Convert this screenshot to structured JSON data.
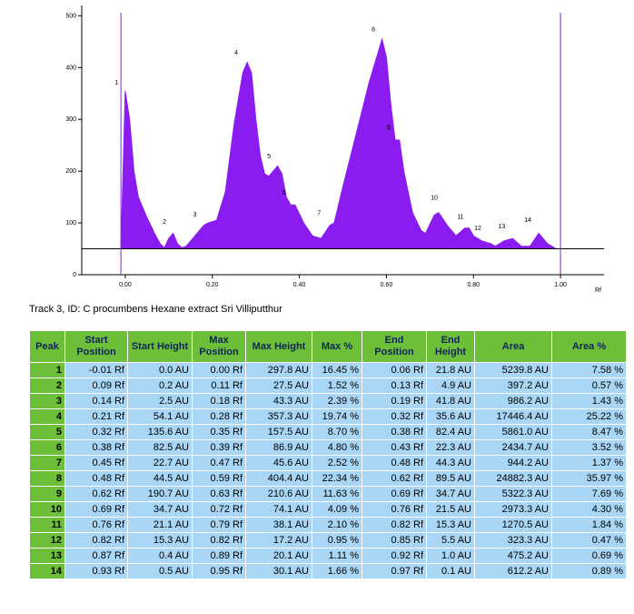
{
  "chart_data": {
    "type": "area",
    "x_label": "Rf",
    "color": "#8a1cf0",
    "baseline": 50,
    "xlim": [
      -0.1,
      1.1
    ],
    "ylim": [
      0,
      520
    ],
    "xticks": [
      {
        "value": 0,
        "label": "0.00"
      },
      {
        "value": 0.2,
        "label": "0.20"
      },
      {
        "value": 0.4,
        "label": "0.40"
      },
      {
        "value": 0.6,
        "label": "0.60"
      },
      {
        "value": 0.8,
        "label": "0.80"
      },
      {
        "value": 1,
        "label": "1.00"
      }
    ],
    "yticks": [
      0,
      100,
      200,
      300,
      400,
      500
    ],
    "vlines": [
      -0.01,
      1.0
    ],
    "x": [
      -0.01,
      0,
      0.01,
      0.02,
      0.03,
      0.05,
      0.07,
      0.08,
      0.09,
      0.1,
      0.11,
      0.12,
      0.13,
      0.14,
      0.16,
      0.18,
      0.19,
      0.21,
      0.23,
      0.25,
      0.27,
      0.28,
      0.29,
      0.3,
      0.31,
      0.32,
      0.33,
      0.35,
      0.36,
      0.37,
      0.38,
      0.39,
      0.41,
      0.43,
      0.45,
      0.47,
      0.48,
      0.5,
      0.53,
      0.56,
      0.59,
      0.6,
      0.61,
      0.62,
      0.63,
      0.64,
      0.66,
      0.68,
      0.69,
      0.71,
      0.72,
      0.74,
      0.76,
      0.78,
      0.79,
      0.8,
      0.82,
      0.84,
      0.85,
      0.87,
      0.89,
      0.91,
      0.93,
      0.95,
      0.97,
      0.99,
      1.0
    ],
    "values": [
      50,
      355,
      300,
      200,
      150,
      110,
      75,
      60,
      52,
      70,
      80,
      60,
      52,
      55,
      75,
      95,
      100,
      105,
      160,
      290,
      390,
      410,
      390,
      300,
      230,
      195,
      190,
      210,
      195,
      150,
      135,
      135,
      100,
      75,
      70,
      95,
      100,
      170,
      270,
      370,
      455,
      420,
      330,
      260,
      260,
      200,
      120,
      85,
      80,
      115,
      120,
      95,
      75,
      90,
      90,
      75,
      65,
      60,
      55,
      65,
      70,
      55,
      55,
      80,
      60,
      50,
      50
    ],
    "peaks": [
      {
        "label": "1",
        "x": -0.02,
        "y": 367
      },
      {
        "label": "2",
        "x": 0.09,
        "y": 98
      },
      {
        "label": "3",
        "x": 0.16,
        "y": 112
      },
      {
        "label": "4",
        "x": 0.255,
        "y": 425
      },
      {
        "label": "5",
        "x": 0.33,
        "y": 225
      },
      {
        "label": "6",
        "x": 0.365,
        "y": 155
      },
      {
        "label": "7",
        "x": 0.445,
        "y": 115
      },
      {
        "label": "8",
        "x": 0.57,
        "y": 470
      },
      {
        "label": "9",
        "x": 0.605,
        "y": 280
      },
      {
        "label": "10",
        "x": 0.71,
        "y": 145
      },
      {
        "label": "11",
        "x": 0.77,
        "y": 108
      },
      {
        "label": "12",
        "x": 0.81,
        "y": 86
      },
      {
        "label": "13",
        "x": 0.865,
        "y": 90
      },
      {
        "label": "14",
        "x": 0.925,
        "y": 102
      }
    ]
  },
  "caption": "Track 3, ID: C procumbens Hexane extract Sri Villiputthur",
  "table": {
    "headers": [
      "Peak",
      "Start Position",
      "Start Height",
      "Max Position",
      "Max Height",
      "Max %",
      "End Position",
      "End Height",
      "Area",
      "Area %"
    ],
    "rows": [
      [
        "1",
        "-0.01 Rf",
        "0.0 AU",
        "0.00 Rf",
        "297.8 AU",
        "16.45 %",
        "0.06 Rf",
        "21.8 AU",
        "5239.8 AU",
        "7.58 %"
      ],
      [
        "2",
        "0.09 Rf",
        "0.2 AU",
        "0.11 Rf",
        "27.5 AU",
        "1.52 %",
        "0.13 Rf",
        "4.9 AU",
        "397.2 AU",
        "0.57 %"
      ],
      [
        "3",
        "0.14 Rf",
        "2.5 AU",
        "0.18 Rf",
        "43.3 AU",
        "2.39 %",
        "0.19 Rf",
        "41.8 AU",
        "986.2 AU",
        "1.43 %"
      ],
      [
        "4",
        "0.21 Rf",
        "54.1 AU",
        "0.28 Rf",
        "357.3 AU",
        "19.74 %",
        "0.32 Rf",
        "35.6 AU",
        "17446.4 AU",
        "25.22 %"
      ],
      [
        "5",
        "0.32 Rf",
        "135.6 AU",
        "0.35 Rf",
        "157.5 AU",
        "8.70 %",
        "0.38 Rf",
        "82.4 AU",
        "5861.0 AU",
        "8.47 %"
      ],
      [
        "6",
        "0.38 Rf",
        "82.5 AU",
        "0.39 Rf",
        "86.9 AU",
        "4.80 %",
        "0.43 Rf",
        "22.3 AU",
        "2434.7 AU",
        "3.52 %"
      ],
      [
        "7",
        "0.45 Rf",
        "22.7 AU",
        "0.47 Rf",
        "45.6 AU",
        "2.52 %",
        "0.48 Rf",
        "44.3 AU",
        "944.2 AU",
        "1.37 %"
      ],
      [
        "8",
        "0.48 Rf",
        "44.5 AU",
        "0.59 Rf",
        "404.4 AU",
        "22.34 %",
        "0.62 Rf",
        "89.5 AU",
        "24882.3 AU",
        "35.97 %"
      ],
      [
        "9",
        "0.62 Rf",
        "190.7 AU",
        "0.63 Rf",
        "210.6 AU",
        "11.63 %",
        "0.69 Rf",
        "34.7 AU",
        "5322.3 AU",
        "7.69 %"
      ],
      [
        "10",
        "0.69 Rf",
        "34.7 AU",
        "0.72 Rf",
        "74.1 AU",
        "4.09 %",
        "0.76 Rf",
        "21.5 AU",
        "2973.3 AU",
        "4.30 %"
      ],
      [
        "11",
        "0.76 Rf",
        "21.1 AU",
        "0.79 Rf",
        "38.1 AU",
        "2.10 %",
        "0.82 Rf",
        "15.3 AU",
        "1270.5 AU",
        "1.84 %"
      ],
      [
        "12",
        "0.82 Rf",
        "15.3 AU",
        "0.82 Rf",
        "17.2 AU",
        "0.95 %",
        "0.85 Rf",
        "5.5 AU",
        "323.3 AU",
        "0.47 %"
      ],
      [
        "13",
        "0.87 Rf",
        "0.4 AU",
        "0.89 Rf",
        "20.1 AU",
        "1.11 %",
        "0.92 Rf",
        "1.0 AU",
        "475.2 AU",
        "0.69 %"
      ],
      [
        "14",
        "0.93 Rf",
        "0.5 AU",
        "0.95 Rf",
        "30.1 AU",
        "1.66 %",
        "0.97 Rf",
        "0.1 AU",
        "612.2 AU",
        "0.89 %"
      ]
    ]
  }
}
